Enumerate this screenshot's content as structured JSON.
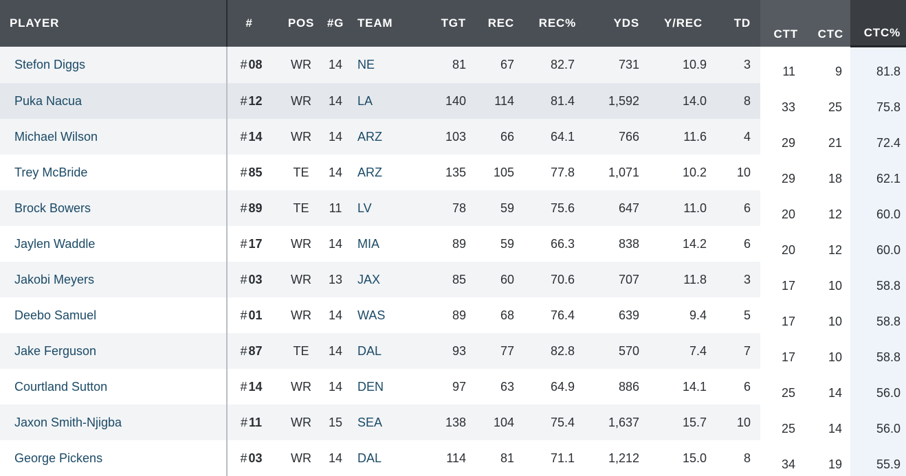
{
  "columns": {
    "player": "PLAYER",
    "num": "#",
    "pos": "POS",
    "games": "#G",
    "team": "TEAM",
    "tgt": "TGT",
    "rec": "REC",
    "rec_pct": "REC%",
    "yds": "YDS",
    "y_rec": "Y/REC",
    "td": "TD",
    "ctt": "CTT",
    "ctc": "CTC",
    "ctc_pct": "CTC%"
  },
  "hash_symbol": "#",
  "rows": [
    {
      "player": "Stefon Diggs",
      "num": "08",
      "pos": "WR",
      "games": "14",
      "team": "NE",
      "tgt": "81",
      "rec": "67",
      "rec_pct": "82.7",
      "yds": "731",
      "y_rec": "10.9",
      "td": "3",
      "ctt": "11",
      "ctc": "9",
      "ctc_pct": "81.8"
    },
    {
      "player": "Puka Nacua",
      "num": "12",
      "pos": "WR",
      "games": "14",
      "team": "LA",
      "tgt": "140",
      "rec": "114",
      "rec_pct": "81.4",
      "yds": "1,592",
      "y_rec": "14.0",
      "td": "8",
      "ctt": "33",
      "ctc": "25",
      "ctc_pct": "75.8"
    },
    {
      "player": "Michael Wilson",
      "num": "14",
      "pos": "WR",
      "games": "14",
      "team": "ARZ",
      "tgt": "103",
      "rec": "66",
      "rec_pct": "64.1",
      "yds": "766",
      "y_rec": "11.6",
      "td": "4",
      "ctt": "29",
      "ctc": "21",
      "ctc_pct": "72.4"
    },
    {
      "player": "Trey McBride",
      "num": "85",
      "pos": "TE",
      "games": "14",
      "team": "ARZ",
      "tgt": "135",
      "rec": "105",
      "rec_pct": "77.8",
      "yds": "1,071",
      "y_rec": "10.2",
      "td": "10",
      "ctt": "29",
      "ctc": "18",
      "ctc_pct": "62.1"
    },
    {
      "player": "Brock Bowers",
      "num": "89",
      "pos": "TE",
      "games": "11",
      "team": "LV",
      "tgt": "78",
      "rec": "59",
      "rec_pct": "75.6",
      "yds": "647",
      "y_rec": "11.0",
      "td": "6",
      "ctt": "20",
      "ctc": "12",
      "ctc_pct": "60.0"
    },
    {
      "player": "Jaylen Waddle",
      "num": "17",
      "pos": "WR",
      "games": "14",
      "team": "MIA",
      "tgt": "89",
      "rec": "59",
      "rec_pct": "66.3",
      "yds": "838",
      "y_rec": "14.2",
      "td": "6",
      "ctt": "20",
      "ctc": "12",
      "ctc_pct": "60.0"
    },
    {
      "player": "Jakobi Meyers",
      "num": "03",
      "pos": "WR",
      "games": "13",
      "team": "JAX",
      "tgt": "85",
      "rec": "60",
      "rec_pct": "70.6",
      "yds": "707",
      "y_rec": "11.8",
      "td": "3",
      "ctt": "17",
      "ctc": "10",
      "ctc_pct": "58.8"
    },
    {
      "player": "Deebo Samuel",
      "num": "01",
      "pos": "WR",
      "games": "14",
      "team": "WAS",
      "tgt": "89",
      "rec": "68",
      "rec_pct": "76.4",
      "yds": "639",
      "y_rec": "9.4",
      "td": "5",
      "ctt": "17",
      "ctc": "10",
      "ctc_pct": "58.8"
    },
    {
      "player": "Jake Ferguson",
      "num": "87",
      "pos": "TE",
      "games": "14",
      "team": "DAL",
      "tgt": "93",
      "rec": "77",
      "rec_pct": "82.8",
      "yds": "570",
      "y_rec": "7.4",
      "td": "7",
      "ctt": "17",
      "ctc": "10",
      "ctc_pct": "58.8"
    },
    {
      "player": "Courtland Sutton",
      "num": "14",
      "pos": "WR",
      "games": "14",
      "team": "DEN",
      "tgt": "97",
      "rec": "63",
      "rec_pct": "64.9",
      "yds": "886",
      "y_rec": "14.1",
      "td": "6",
      "ctt": "25",
      "ctc": "14",
      "ctc_pct": "56.0"
    },
    {
      "player": "Jaxon Smith-Njigba",
      "num": "11",
      "pos": "WR",
      "games": "15",
      "team": "SEA",
      "tgt": "138",
      "rec": "104",
      "rec_pct": "75.4",
      "yds": "1,637",
      "y_rec": "15.7",
      "td": "10",
      "ctt": "25",
      "ctc": "14",
      "ctc_pct": "56.0"
    },
    {
      "player": "George Pickens",
      "num": "03",
      "pos": "WR",
      "games": "14",
      "team": "DAL",
      "tgt": "114",
      "rec": "81",
      "rec_pct": "71.1",
      "yds": "1,212",
      "y_rec": "15.0",
      "td": "8",
      "ctt": "34",
      "ctc": "19",
      "ctc_pct": "55.9"
    }
  ]
}
